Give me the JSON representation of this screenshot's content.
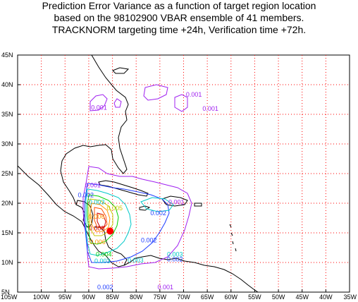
{
  "title": {
    "line1": "Prediction Error Variance as a function of target region location",
    "line2": "based on the 98102900 VBAR ensemble of 41 members.",
    "line3": "TRACKNORM targeting time +24h, Verification time +72h."
  },
  "axes": {
    "lat_labels": [
      "45N",
      "40N",
      "35N",
      "30N",
      "25N",
      "20N",
      "15N",
      "10N",
      "5N"
    ],
    "lon_labels": [
      "105W",
      "100W",
      "95W",
      "90W",
      "85W",
      "80W",
      "75W",
      "70W",
      "65W",
      "60W",
      "55W",
      "50W",
      "45W",
      "40W",
      "35W"
    ],
    "lat_range": [
      5,
      45
    ],
    "lon_range": [
      -105,
      -35
    ]
  },
  "colors": {
    "grid": "#ff0000",
    "coast": "#000000",
    "c001": "#a020f0",
    "c002": "#1e3cff",
    "c003": "#00c8c8",
    "c004": "#00d200",
    "c005": "#c8c800",
    "c006": "#ff9600",
    "c007": "#ff5000",
    "c008": "#d20000",
    "max": "#ff0000"
  },
  "contour_labels": [
    {
      "text": "0.001",
      "level": "c001",
      "lon": -69.5,
      "lat": 38.0
    },
    {
      "text": "0.001",
      "level": "c001",
      "lon": -89.5,
      "lat": 35.8
    },
    {
      "text": "0.001",
      "level": "c001",
      "lon": -66.0,
      "lat": 35.6
    },
    {
      "text": "0.001",
      "level": "c001",
      "lon": -90.8,
      "lat": 22.7
    },
    {
      "text": "0.002",
      "level": "c002",
      "lon": -92.3,
      "lat": 21.0
    },
    {
      "text": "0.003",
      "level": "c003",
      "lon": -90.0,
      "lat": 19.8
    },
    {
      "text": "0.005",
      "level": "c005",
      "lon": -86.2,
      "lat": 18.8
    },
    {
      "text": "0.001",
      "level": "c001",
      "lon": -73.2,
      "lat": 19.8
    },
    {
      "text": "0.006",
      "level": "c006",
      "lon": -90.0,
      "lat": 17.4
    },
    {
      "text": "0.008",
      "level": "c008",
      "lon": -90.0,
      "lat": 15.4
    },
    {
      "text": "0.006",
      "level": "c006",
      "lon": -89.8,
      "lat": 13.1
    },
    {
      "text": "0.002",
      "level": "c002",
      "lon": -77.0,
      "lat": 18.0
    },
    {
      "text": "0.002",
      "level": "c002",
      "lon": -79.0,
      "lat": 13.4
    },
    {
      "text": "0.004",
      "level": "c004",
      "lon": -88.5,
      "lat": 11.0
    },
    {
      "text": "0.003",
      "level": "c003",
      "lon": -88.8,
      "lat": 9.9
    },
    {
      "text": "0.003",
      "level": "c003",
      "lon": -81.8,
      "lat": 10.0
    },
    {
      "text": "0.003",
      "level": "c003",
      "lon": -73.5,
      "lat": 11.0
    },
    {
      "text": "0.002",
      "level": "c002",
      "lon": -73.5,
      "lat": 10.2
    },
    {
      "text": "0.001",
      "level": "c001",
      "lon": -75.5,
      "lat": 5.3
    },
    {
      "text": "0.002",
      "level": "c002",
      "lon": -88.2,
      "lat": 3.6
    }
  ],
  "maximum": {
    "lon": -85.5,
    "lat": 15.3
  }
}
